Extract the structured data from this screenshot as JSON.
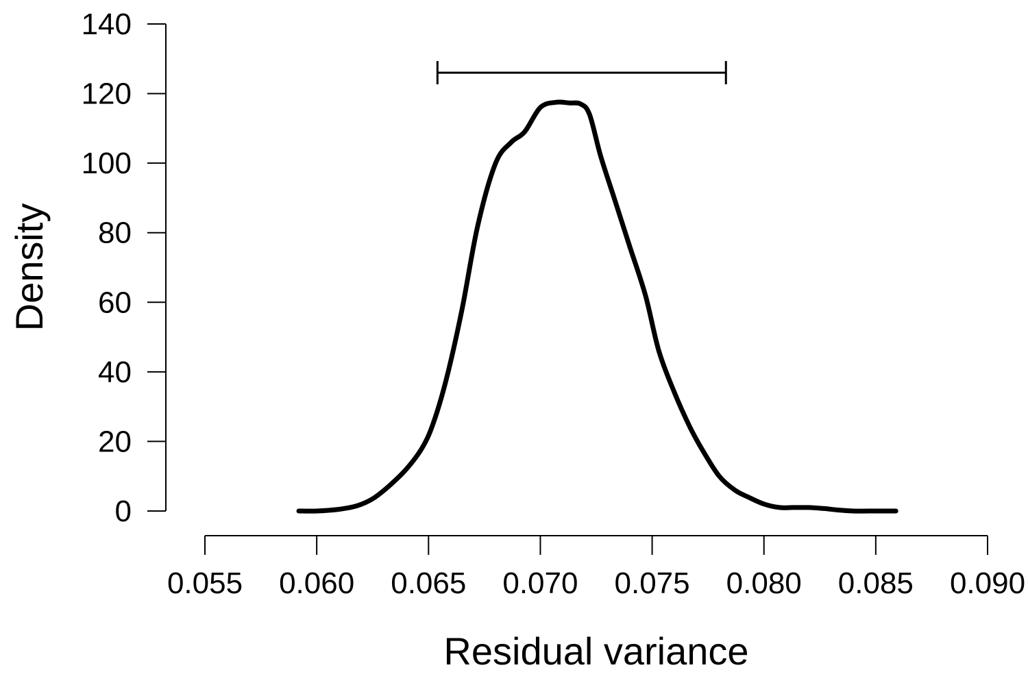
{
  "chart_data": {
    "type": "line",
    "title": "",
    "xlabel": "Residual variance",
    "ylabel": "Density",
    "xlim": [
      0.055,
      0.09
    ],
    "ylim": [
      0,
      140
    ],
    "x_ticks": [
      "0.055",
      "0.060",
      "0.065",
      "0.070",
      "0.075",
      "0.080",
      "0.085",
      "0.090"
    ],
    "y_ticks": [
      "0",
      "20",
      "40",
      "60",
      "80",
      "100",
      "120",
      "140"
    ],
    "grid": false,
    "legend": "none",
    "interval": {
      "low": 0.0654,
      "high": 0.0783,
      "y": 126
    },
    "series": [
      {
        "x": [
          0.0592,
          0.06,
          0.061,
          0.0618,
          0.0625,
          0.0632,
          0.064,
          0.0647,
          0.0652,
          0.0658,
          0.0665,
          0.0672,
          0.068,
          0.0687,
          0.0693,
          0.07,
          0.0707,
          0.0713,
          0.0718,
          0.0722,
          0.0727,
          0.0733,
          0.074,
          0.0747,
          0.0753,
          0.076,
          0.0767,
          0.0773,
          0.078,
          0.0787,
          0.0793,
          0.08,
          0.0807,
          0.0813,
          0.082,
          0.0827,
          0.0833,
          0.084,
          0.0847,
          0.0853,
          0.0859
        ],
        "y": [
          0,
          0,
          0.5,
          1.5,
          3.5,
          7,
          12,
          18,
          25,
          38,
          58,
          82,
          100,
          106,
          109,
          116,
          117.5,
          117.3,
          117,
          114,
          102,
          90,
          76,
          62,
          46,
          34,
          24,
          17,
          10,
          6,
          4,
          2,
          1,
          1,
          1,
          0.7,
          0.3,
          0,
          0,
          0,
          0
        ]
      }
    ]
  }
}
